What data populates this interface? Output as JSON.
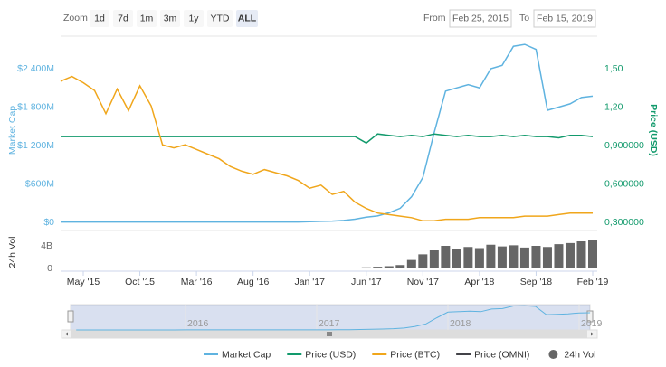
{
  "chart_data": {
    "type": "stock",
    "range_selector": {
      "label": "Zoom",
      "buttons": [
        "1d",
        "7d",
        "1m",
        "3m",
        "1y",
        "YTD",
        "ALL"
      ],
      "selected": 6
    },
    "from_label": "From",
    "from": "Feb 25, 2015",
    "to_label": "To",
    "to": "Feb 15, 2019",
    "y_title": "Market Cap",
    "y2_title": "Price (USD)",
    "vol_title": "24h Vol",
    "x": [
      "2015-03",
      "2015-04",
      "2015-05",
      "2015-06",
      "2015-07",
      "2015-08",
      "2015-09",
      "2015-10",
      "2015-11",
      "2015-12",
      "2016-01",
      "2016-02",
      "2016-03",
      "2016-04",
      "2016-05",
      "2016-06",
      "2016-07",
      "2016-08",
      "2016-09",
      "2016-10",
      "2016-11",
      "2016-12",
      "2017-01",
      "2017-02",
      "2017-03",
      "2017-04",
      "2017-05",
      "2017-06",
      "2017-07",
      "2017-08",
      "2017-09",
      "2017-10",
      "2017-11",
      "2017-12",
      "2018-01",
      "2018-02",
      "2018-03",
      "2018-04",
      "2018-05",
      "2018-06",
      "2018-07",
      "2018-08",
      "2018-09",
      "2018-10",
      "2018-11",
      "2018-12",
      "2019-01",
      "2019-02"
    ],
    "xticks": [
      {
        "value": "2015-05",
        "label": "May '15"
      },
      {
        "value": "2015-10",
        "label": "Oct '15"
      },
      {
        "value": "2016-03",
        "label": "Mar '16"
      },
      {
        "value": "2016-08",
        "label": "Aug '16"
      },
      {
        "value": "2017-01",
        "label": "Jan '17"
      },
      {
        "value": "2017-06",
        "label": "Jun '17"
      },
      {
        "value": "2017-11",
        "label": "Nov '17"
      },
      {
        "value": "2018-04",
        "label": "Apr '18"
      },
      {
        "value": "2018-09",
        "label": "Sep '18"
      },
      {
        "value": "2019-02",
        "label": "Feb '19"
      }
    ],
    "ylim": [
      0,
      2908000000
    ],
    "yticks": [
      {
        "value": 0,
        "label": "$0"
      },
      {
        "value": 600000000,
        "label": "$600M"
      },
      {
        "value": 1200000000,
        "label": "$1 200M"
      },
      {
        "value": 1800000000,
        "label": "$1 800M"
      },
      {
        "value": 2400000000,
        "label": "$2 400M"
      }
    ],
    "y2lim": [
      0.3,
      1.754
    ],
    "y2ticks": [
      {
        "value": 0.3,
        "label": "0,300000"
      },
      {
        "value": 0.6,
        "label": "0,600000"
      },
      {
        "value": 0.9,
        "label": "0,900000"
      },
      {
        "value": 1.2,
        "label": "1,20"
      },
      {
        "value": 1.5,
        "label": "1,50"
      }
    ],
    "y3lim": [
      0,
      0.012
    ],
    "vollim": [
      0,
      5600000000
    ],
    "volticks": [
      {
        "value": 0,
        "label": "0"
      },
      {
        "value": 4000000000,
        "label": "4B"
      }
    ],
    "series": [
      {
        "name": "Market Cap",
        "color": "#5fb3e0",
        "axis": "y",
        "values": [
          5000000,
          5000000,
          5000000,
          5000000,
          5000000,
          5000000,
          5000000,
          5000000,
          5000000,
          5000000,
          6000000,
          6000000,
          6000000,
          6000000,
          6000000,
          6000000,
          6000000,
          6000000,
          6000000,
          6000000,
          6000000,
          6000000,
          10000000,
          15000000,
          20000000,
          30000000,
          50000000,
          80000000,
          100000000,
          150000000,
          220000000,
          400000000,
          700000000,
          1400000000,
          2050000000,
          2100000000,
          2150000000,
          2100000000,
          2400000000,
          2450000000,
          2750000000,
          2780000000,
          2700000000,
          1750000000,
          1800000000,
          1850000000,
          1950000000,
          1970000000
        ]
      },
      {
        "name": "Price (USD)",
        "color": "#129a6c",
        "axis": "y2",
        "values": [
          0.97,
          0.97,
          0.97,
          0.97,
          0.97,
          0.97,
          0.97,
          0.97,
          0.97,
          0.97,
          0.97,
          0.97,
          0.97,
          0.97,
          0.97,
          0.97,
          0.97,
          0.97,
          0.97,
          0.97,
          0.97,
          0.97,
          0.97,
          0.97,
          0.97,
          0.97,
          0.97,
          0.92,
          0.99,
          0.98,
          0.97,
          0.98,
          0.97,
          0.99,
          0.98,
          0.97,
          0.98,
          0.97,
          0.97,
          0.98,
          0.97,
          0.98,
          0.97,
          0.97,
          0.96,
          0.98,
          0.98,
          0.97
        ]
      },
      {
        "name": "Price (BTC)",
        "color": "#f0a61b",
        "axis": "y3",
        "values": [
          0.0091,
          0.0094,
          0.009,
          0.0085,
          0.007,
          0.0086,
          0.0072,
          0.0088,
          0.0075,
          0.005,
          0.0048,
          0.005,
          0.0047,
          0.0044,
          0.0041,
          0.0036,
          0.0033,
          0.0031,
          0.0034,
          0.0032,
          0.003,
          0.0027,
          0.0022,
          0.0024,
          0.0018,
          0.002,
          0.0013,
          0.0009,
          0.0006,
          0.0005,
          0.0004,
          0.0003,
          0.0001,
          0.0001,
          0.0002,
          0.0002,
          0.0002,
          0.0003,
          0.0003,
          0.0003,
          0.0003,
          0.0004,
          0.0004,
          0.0004,
          0.0005,
          0.0006,
          0.0006,
          0.0006
        ]
      },
      {
        "name": "24h Vol",
        "color": "#666666",
        "axis": "vol",
        "values": [
          0,
          0,
          0,
          0,
          0,
          0,
          0,
          0,
          0,
          0,
          0,
          0,
          0,
          0,
          0,
          0,
          0,
          0,
          0,
          0,
          0,
          0,
          0,
          0,
          0,
          0,
          0,
          200000000,
          300000000,
          400000000,
          600000000,
          1500000000,
          2500000000,
          3200000000,
          4000000000,
          3500000000,
          3800000000,
          3600000000,
          4200000000,
          3900000000,
          4100000000,
          3700000000,
          4000000000,
          3800000000,
          4300000000,
          4500000000,
          4800000000,
          5000000000
        ]
      }
    ],
    "hidden_series": [
      {
        "name": "Price (OMNI)",
        "color": "#434348"
      }
    ],
    "legend_order": [
      0,
      1,
      2,
      "h0",
      3
    ],
    "navigator_labels": [
      {
        "value": "2016-01",
        "label": "2016"
      },
      {
        "value": "2017-01",
        "label": "2017"
      },
      {
        "value": "2018-01",
        "label": "2018"
      },
      {
        "value": "2019-01",
        "label": "2019"
      }
    ]
  }
}
